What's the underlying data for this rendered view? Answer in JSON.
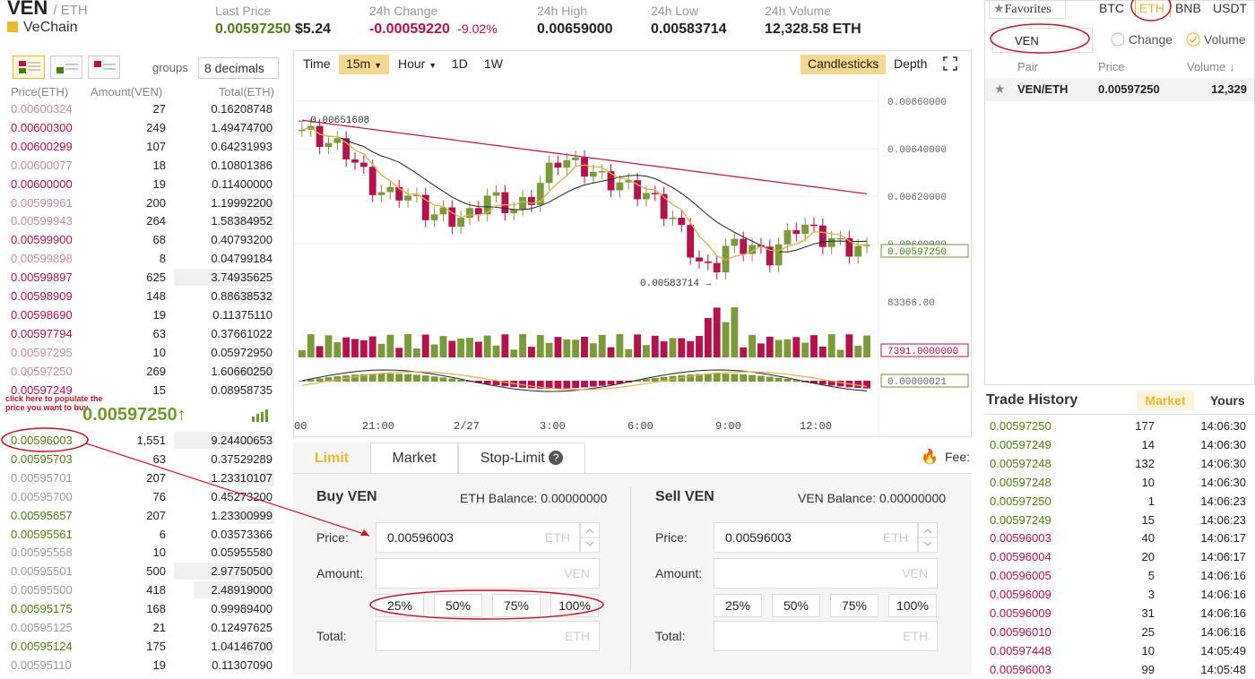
{
  "header": {
    "symbol": "VEN",
    "quote": "/ ETH",
    "name": "VeChain",
    "stats": [
      {
        "label": "Last Price",
        "value": "0.00597250",
        "extra": "$5.24",
        "color": "#4f7d13"
      },
      {
        "label": "24h Change",
        "value": "-0.00059220",
        "extra": "-9.02%",
        "color": "#b8104a"
      },
      {
        "label": "24h High",
        "value": "0.00659000"
      },
      {
        "label": "24h Low",
        "value": "0.00583714"
      },
      {
        "label": "24h Volume",
        "value": "12,328.58 ETH"
      }
    ]
  },
  "orderbook": {
    "groups_label": "groups",
    "decimals": "8 decimals",
    "headers": {
      "price": "Price(ETH)",
      "amount": "Amount(VEN)",
      "total": "Total(ETH)"
    },
    "asks": [
      {
        "price": "0.00600324",
        "amount": "27",
        "total": "0.16208748",
        "fill": 0.0,
        "faded": true
      },
      {
        "price": "0.00600300",
        "amount": "249",
        "total": "1.49474700",
        "fill": 0.4
      },
      {
        "price": "0.00600299",
        "amount": "107",
        "total": "0.64231993",
        "fill": 0.0
      },
      {
        "price": "0.00600077",
        "amount": "18",
        "total": "0.10801386",
        "fill": 0.0,
        "faded": true
      },
      {
        "price": "0.00600000",
        "amount": "19",
        "total": "0.11400000",
        "fill": 0.0
      },
      {
        "price": "0.00599961",
        "amount": "200",
        "total": "1.19992200",
        "fill": 0.35,
        "faded": true
      },
      {
        "price": "0.00599943",
        "amount": "264",
        "total": "1.58384952",
        "fill": 0.4,
        "faded": true
      },
      {
        "price": "0.00599900",
        "amount": "68",
        "total": "0.40793200",
        "fill": 0.0
      },
      {
        "price": "0.00599898",
        "amount": "8",
        "total": "0.04799184",
        "fill": 0.0,
        "faded": true
      },
      {
        "price": "0.00599897",
        "amount": "625",
        "total": "3.74935625",
        "fill": 1.0
      },
      {
        "price": "0.00598909",
        "amount": "148",
        "total": "0.88638532",
        "fill": 0.4
      },
      {
        "price": "0.00598690",
        "amount": "19",
        "total": "0.11375110",
        "fill": 0.0
      },
      {
        "price": "0.00597794",
        "amount": "63",
        "total": "0.37661022",
        "fill": 0.0
      },
      {
        "price": "0.00597295",
        "amount": "10",
        "total": "0.05972950",
        "fill": 0.0,
        "faded": true
      },
      {
        "price": "0.00597250",
        "amount": "269",
        "total": "1.60660250",
        "fill": 0.4,
        "faded": true
      },
      {
        "price": "0.00597249",
        "amount": "15",
        "total": "0.08958735",
        "fill": 0.0
      }
    ],
    "last_price": "0.00597250",
    "last_arrow": "↑",
    "note": "click here to populate the price you want to buy",
    "bids": [
      {
        "price": "0.00596003",
        "amount": "1,551",
        "total": "9.24400653",
        "fill": 1.0
      },
      {
        "price": "0.00595703",
        "amount": "63",
        "total": "0.37529289",
        "fill": 0.0
      },
      {
        "price": "0.00595701",
        "amount": "207",
        "total": "1.23310107",
        "fill": 0.37,
        "faded": true
      },
      {
        "price": "0.00595700",
        "amount": "76",
        "total": "0.45273200",
        "fill": 0.0,
        "faded": true
      },
      {
        "price": "0.00595657",
        "amount": "207",
        "total": "1.23300999",
        "fill": 0.37
      },
      {
        "price": "0.00595561",
        "amount": "6",
        "total": "0.03573366",
        "fill": 0.0
      },
      {
        "price": "0.00595558",
        "amount": "10",
        "total": "0.05955580",
        "fill": 0.0,
        "faded": true
      },
      {
        "price": "0.00595501",
        "amount": "500",
        "total": "2.97750500",
        "fill": 1.0,
        "faded": true
      },
      {
        "price": "0.00595500",
        "amount": "418",
        "total": "2.48919000",
        "fill": 0.8,
        "faded": true
      },
      {
        "price": "0.00595175",
        "amount": "168",
        "total": "0.99989400",
        "fill": 0.0
      },
      {
        "price": "0.00595125",
        "amount": "21",
        "total": "0.12497625",
        "fill": 0.0,
        "faded": true
      },
      {
        "price": "0.00595124",
        "amount": "175",
        "total": "1.04146700",
        "fill": 0.33
      },
      {
        "price": "0.00595110",
        "amount": "19",
        "total": "0.11307090",
        "fill": 0.0,
        "faded": true
      }
    ]
  },
  "chart": {
    "toolbar": [
      "Time",
      "15m",
      "Hour",
      "1D",
      "1W"
    ],
    "candlesticks_label": "Candlesticks",
    "depth_label": "Depth",
    "price_axis": [
      "0.00660000",
      "0.00640000",
      "0.00620000",
      "0.00600000"
    ],
    "current_price_tag": "0.00597250",
    "high_label": "0.00651608",
    "low_label": "0.00583714",
    "volume_axis": "83366.00",
    "volume_tag": "7391.0000000",
    "macd_tag": "0.00000021",
    "time_axis": [
      "00",
      "21:00",
      "2/27",
      "3:00",
      "6:00",
      "9:00",
      "12:00"
    ]
  },
  "trade": {
    "tabs": [
      "Limit",
      "Market",
      "Stop-Limit"
    ],
    "fee_label": "Fee:",
    "buy": {
      "title": "Buy VEN",
      "balance": "ETH Balance: 0.00000000",
      "price_label": "Price:",
      "price_value": "0.00596003",
      "price_unit": "ETH",
      "amount_label": "Amount:",
      "amount_unit": "VEN",
      "pcts": [
        "25%",
        "50%",
        "75%",
        "100%"
      ],
      "total_label": "Total:",
      "total_unit": "ETH"
    },
    "sell": {
      "title": "Sell VEN",
      "balance": "VEN Balance: 0.00000000",
      "price_label": "Price:",
      "price_value": "0.00596003",
      "price_unit": "ETH",
      "amount_label": "Amount:",
      "amount_unit": "VEN",
      "pcts": [
        "25%",
        "50%",
        "75%",
        "100%"
      ],
      "total_label": "Total:",
      "total_unit": "ETH"
    }
  },
  "market": {
    "favorites": "Favorites",
    "tabs": [
      "BTC",
      "ETH",
      "BNB",
      "USDT"
    ],
    "search_value": "VEN",
    "radio_change": "Change",
    "radio_volume": "Volume",
    "col_pair": "Pair",
    "col_price": "Price",
    "col_volume": "Volume",
    "rows": [
      {
        "pair": "VEN/ETH",
        "price": "0.00597250",
        "volume": "12,329"
      }
    ]
  },
  "history": {
    "title": "Trade History",
    "tab_market": "Market",
    "tab_yours": "Yours",
    "rows": [
      {
        "price": "0.00597250",
        "amount": "177",
        "time": "14:06:30",
        "side": "buy"
      },
      {
        "price": "0.00597249",
        "amount": "14",
        "time": "14:06:30",
        "side": "buy"
      },
      {
        "price": "0.00597248",
        "amount": "132",
        "time": "14:06:30",
        "side": "buy"
      },
      {
        "price": "0.00597248",
        "amount": "10",
        "time": "14:06:30",
        "side": "buy"
      },
      {
        "price": "0.00597250",
        "amount": "1",
        "time": "14:06:23",
        "side": "buy"
      },
      {
        "price": "0.00597249",
        "amount": "15",
        "time": "14:06:23",
        "side": "buy"
      },
      {
        "price": "0.00596003",
        "amount": "40",
        "time": "14:06:17",
        "side": "sell"
      },
      {
        "price": "0.00596004",
        "amount": "20",
        "time": "14:06:17",
        "side": "sell"
      },
      {
        "price": "0.00596005",
        "amount": "5",
        "time": "14:06:16",
        "side": "sell"
      },
      {
        "price": "0.00596009",
        "amount": "3",
        "time": "14:06:16",
        "side": "sell"
      },
      {
        "price": "0.00596009",
        "amount": "31",
        "time": "14:06:16",
        "side": "sell"
      },
      {
        "price": "0.00596010",
        "amount": "25",
        "time": "14:06:16",
        "side": "sell"
      },
      {
        "price": "0.00597448",
        "amount": "10",
        "time": "14:05:49",
        "side": "sell"
      },
      {
        "price": "0.00596003",
        "amount": "99",
        "time": "14:05:48",
        "side": "sell"
      }
    ]
  },
  "colors": {
    "accent": "#e9b92e",
    "buy": "#4f7d13",
    "sell": "#b8104a",
    "annotation": "#c0162c"
  }
}
